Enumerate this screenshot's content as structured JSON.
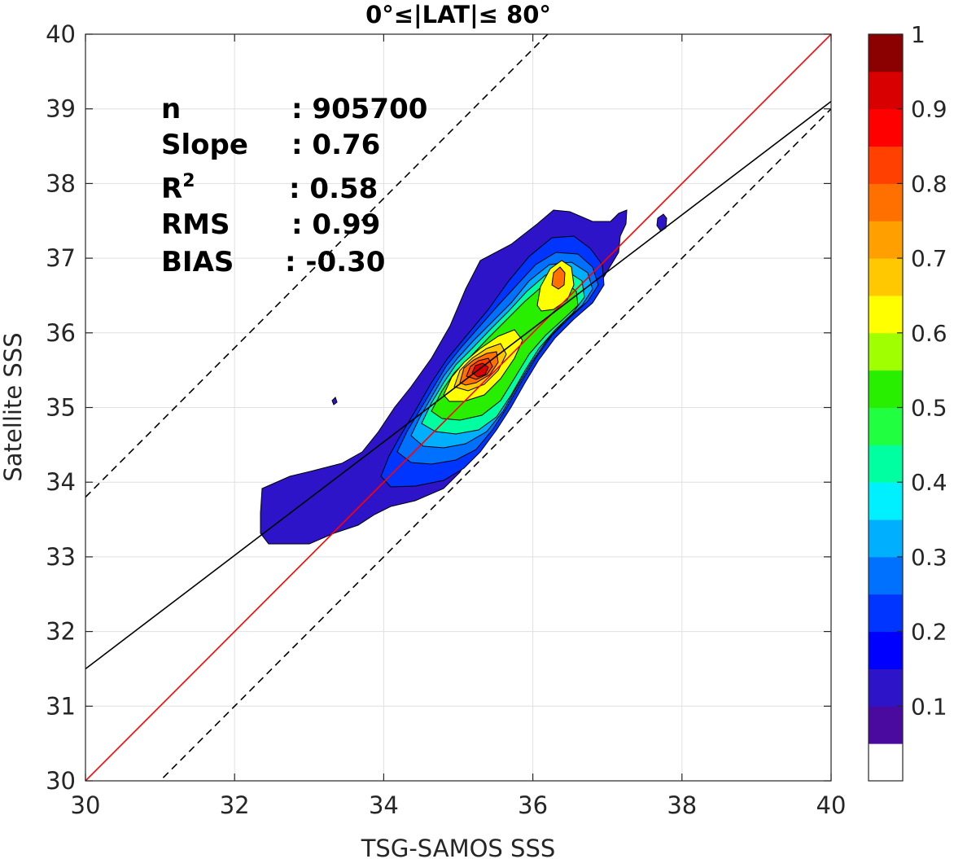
{
  "chart_data": {
    "type": "contour",
    "title": "0°≤|LAT|≤ 80°",
    "xlabel": "TSG-SAMOS SSS",
    "ylabel": "Satellite SSS",
    "xlim": [
      30,
      40
    ],
    "ylim": [
      30,
      40
    ],
    "xticks": [
      30,
      32,
      34,
      36,
      38,
      40
    ],
    "yticks": [
      30,
      31,
      32,
      33,
      34,
      35,
      36,
      37,
      38,
      39,
      40
    ],
    "grid": true,
    "stats": [
      {
        "label": "n",
        "value": ": 905700"
      },
      {
        "label": "Slope",
        "value": ": 0.76"
      },
      {
        "label": "R",
        "sup": "2",
        "value": ": 0.58"
      },
      {
        "label": "RMS",
        "value": ": 0.99"
      },
      {
        "label": "BIAS",
        "value": ": -0.30"
      }
    ],
    "lines": [
      {
        "name": "one-to-one",
        "color": "#ff0000",
        "style": "solid",
        "slope": 1.0,
        "intercept": 0.0
      },
      {
        "name": "regression",
        "color": "#000000",
        "style": "solid",
        "slope": 0.76,
        "intercept": 8.7
      },
      {
        "name": "upper-bound",
        "color": "#000000",
        "style": "dashed",
        "slope": 1.0,
        "intercept": 3.8
      },
      {
        "name": "lower-bound",
        "color": "#000000",
        "style": "dashed",
        "slope": 1.0,
        "intercept": -1.0
      }
    ],
    "density_peaks": [
      {
        "x": 35.35,
        "y": 35.45,
        "level": 0.95
      },
      {
        "x": 36.35,
        "y": 36.7,
        "level": 0.75
      }
    ],
    "colorbar": {
      "ticks": [
        0.1,
        0.2,
        0.3,
        0.4,
        0.5,
        0.6,
        0.7,
        0.8,
        0.9,
        1
      ],
      "tick_labels": [
        "0.1",
        "0.2",
        "0.3",
        "0.4",
        "0.5",
        "0.6",
        "0.7",
        "0.8",
        "0.9",
        "1"
      ],
      "range": [
        0,
        1
      ],
      "colors": [
        "#ffffff",
        "#4a0aa0",
        "#2e14c8",
        "#0000ff",
        "#0034ff",
        "#0070ff",
        "#00b0ff",
        "#00f0ff",
        "#00ffa0",
        "#20ff40",
        "#28ee00",
        "#a0ff00",
        "#ffff00",
        "#ffc800",
        "#ffa000",
        "#ff7000",
        "#ff4000",
        "#ff0000",
        "#d80000",
        "#8b0000"
      ]
    }
  }
}
